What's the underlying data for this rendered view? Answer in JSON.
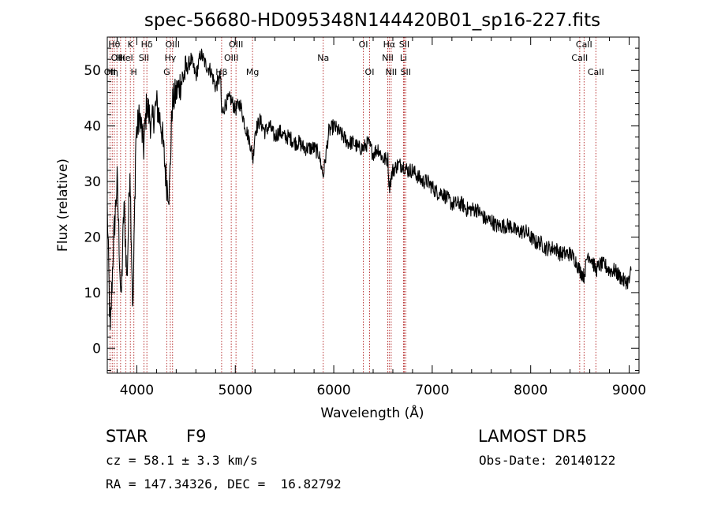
{
  "chart_data": {
    "type": "line",
    "title": "spec-56680-HD095348N144420B01_sp16-227.fits",
    "xlabel": "Wavelength (Å)",
    "ylabel": "Flux (relative)",
    "xlim": [
      3700,
      9100
    ],
    "ylim": [
      -4.5,
      56
    ],
    "xticks": [
      4000,
      5000,
      6000,
      7000,
      8000,
      9000
    ],
    "yticks": [
      0,
      10,
      20,
      30,
      40,
      50
    ],
    "grid": false,
    "line_color": "#000000",
    "marker_color": "#b22222",
    "series": [
      {
        "x": [
          3700,
          3730,
          3760,
          3800,
          3840,
          3870,
          3900,
          3930,
          3960,
          3990,
          4030,
          4070,
          4100,
          4150,
          4200,
          4250,
          4300,
          4330,
          4360,
          4400,
          4450,
          4500,
          4550,
          4600,
          4650,
          4700,
          4750,
          4800,
          4850,
          4861,
          4900,
          4950,
          5000,
          5050,
          5100,
          5150,
          5180,
          5200,
          5250,
          5300,
          5350,
          5400,
          5450,
          5500,
          5550,
          5600,
          5650,
          5700,
          5750,
          5800,
          5850,
          5893,
          5950,
          6000,
          6050,
          6100,
          6150,
          6200,
          6250,
          6300,
          6350,
          6400,
          6450,
          6500,
          6550,
          6563,
          6600,
          6650,
          6700,
          6750,
          6800,
          6850,
          6900,
          6950,
          7000,
          7050,
          7100,
          7150,
          7200,
          7250,
          7300,
          7350,
          7400,
          7450,
          7500,
          7550,
          7600,
          7650,
          7700,
          7750,
          7800,
          7850,
          7900,
          7950,
          8000,
          8050,
          8100,
          8150,
          8200,
          8250,
          8300,
          8350,
          8400,
          8450,
          8498,
          8542,
          8580,
          8620,
          8662,
          8700,
          8750,
          8800,
          8850,
          8900,
          8950,
          9000,
          9020
        ],
        "values": [
          25,
          2,
          18,
          30,
          8,
          26,
          12,
          33,
          6,
          38,
          42,
          36,
          44,
          40,
          44,
          40,
          30,
          28,
          44,
          46,
          48,
          50,
          52,
          49,
          53,
          51,
          50,
          47,
          49,
          42,
          44,
          45,
          43,
          44,
          40,
          37,
          34,
          39,
          41,
          39,
          40,
          38,
          39,
          38,
          38,
          37,
          37,
          36,
          36,
          36,
          35,
          31,
          39,
          40,
          39,
          38,
          37,
          37,
          36,
          36,
          37,
          35,
          36,
          34,
          34,
          29,
          32,
          33,
          33,
          32,
          32,
          31,
          30,
          30,
          29,
          28,
          28,
          27,
          26,
          26,
          26,
          25,
          25,
          25,
          24,
          23,
          23,
          22,
          22,
          22,
          22,
          21,
          21,
          21,
          20,
          19,
          19,
          18,
          18,
          18,
          17,
          17,
          17,
          16,
          14,
          13,
          17,
          16,
          14,
          15,
          15,
          14,
          14,
          13,
          12,
          12,
          14
        ]
      }
    ],
    "lines": [
      {
        "x": 3727,
        "label": "OII",
        "row": 2
      },
      {
        "x": 3750,
        "label": "Hη",
        "row": 2
      },
      {
        "x": 3771,
        "label": "Hθ",
        "row": 0
      },
      {
        "x": 3798,
        "label": "OII",
        "row": 1
      },
      {
        "x": 3835,
        "label": "Hι",
        "row": 1
      },
      {
        "x": 3889,
        "label": "HeI",
        "row": 1
      },
      {
        "x": 3934,
        "label": "K",
        "row": 0
      },
      {
        "x": 3970,
        "label": "H",
        "row": 2
      },
      {
        "x": 4072,
        "label": "SII",
        "row": 1
      },
      {
        "x": 4102,
        "label": "Hδ",
        "row": 0
      },
      {
        "x": 4304,
        "label": "G",
        "row": 2
      },
      {
        "x": 4340,
        "label": "Hγ",
        "row": 1
      },
      {
        "x": 4363,
        "label": "OIII",
        "row": 0
      },
      {
        "x": 4861,
        "label": "Hβ",
        "row": 2
      },
      {
        "x": 4959,
        "label": "OIII",
        "row": 1
      },
      {
        "x": 5007,
        "label": "OIII",
        "row": 0
      },
      {
        "x": 5175,
        "label": "Mg",
        "row": 2
      },
      {
        "x": 5893,
        "label": "Na",
        "row": 1
      },
      {
        "x": 6300,
        "label": "OI",
        "row": 0
      },
      {
        "x": 6364,
        "label": "OI",
        "row": 2
      },
      {
        "x": 6548,
        "label": "NII",
        "row": 1
      },
      {
        "x": 6563,
        "label": "Hα",
        "row": 0
      },
      {
        "x": 6583,
        "label": "NII",
        "row": 2
      },
      {
        "x": 6708,
        "label": "Li",
        "row": 1
      },
      {
        "x": 6716,
        "label": "SII",
        "row": 0
      },
      {
        "x": 6731,
        "label": "SII",
        "row": 2
      },
      {
        "x": 8498,
        "label": "CaII",
        "row": 1
      },
      {
        "x": 8542,
        "label": "CaII",
        "row": 0
      },
      {
        "x": 8662,
        "label": "CaII",
        "row": 2
      }
    ]
  },
  "info": {
    "object_class": "STAR",
    "subclass": "F9",
    "survey": "LAMOST DR5",
    "cz": "cz = 58.1 ± 3.3 km/s",
    "obs_date": "Obs-Date: 20140122",
    "coords": "RA = 147.34326, DEC =  16.82792"
  }
}
